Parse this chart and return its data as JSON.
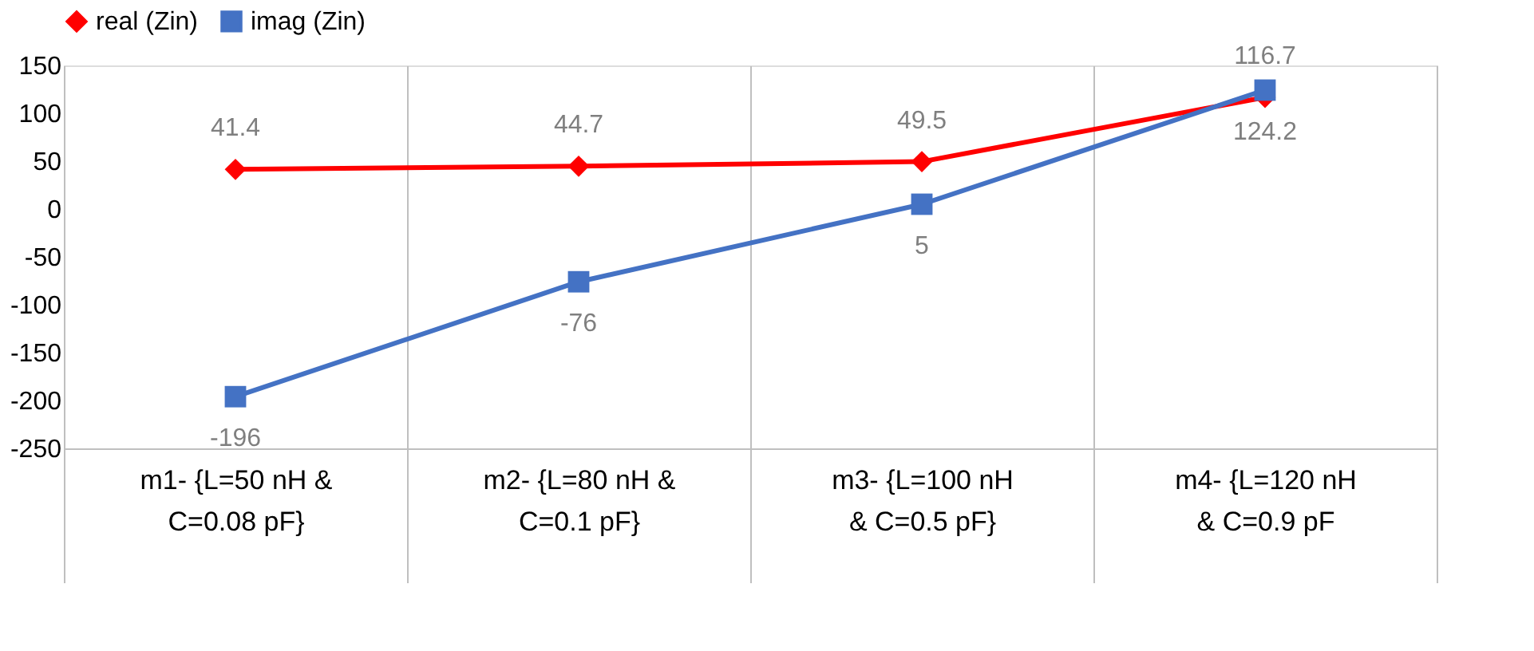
{
  "chart_data": {
    "type": "line",
    "categories": [
      "m1- {L=50 nH & C=0.08 pF}",
      "m2- {L=80 nH & C=0.1 pF}",
      "m3- {L=100 nH & C=0.5 pF}",
      "m4- {L=120 nH & C=0.9 pF"
    ],
    "series": [
      {
        "name": "real (Zin)",
        "color": "#ff0000",
        "marker": "diamond",
        "values": [
          41.4,
          44.7,
          49.5,
          116.7
        ]
      },
      {
        "name": "imag (Zin)",
        "color": "#4472c4",
        "marker": "square",
        "values": [
          -196,
          -76,
          5,
          124.2
        ]
      }
    ],
    "ylim": [
      -250,
      150
    ],
    "yticks": [
      -250,
      -200,
      -150,
      -100,
      -50,
      0,
      50,
      100,
      150
    ],
    "grid": "x",
    "legend": "top",
    "data_labels": true,
    "line_style": "solid"
  }
}
